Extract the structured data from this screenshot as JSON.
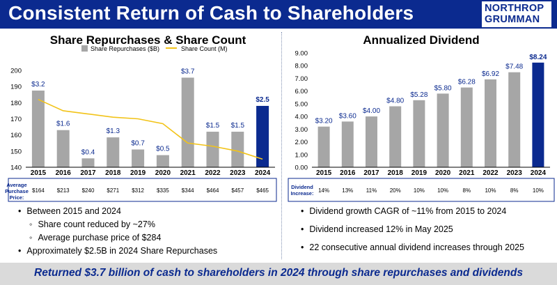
{
  "header": {
    "title": "Consistent Return of Cash to Shareholders",
    "logo_line1": "NORTHROP",
    "logo_line2": "GRUMMAN",
    "bg_color": "#0b2a8f"
  },
  "left": {
    "title": "Share Repurchases & Share Count",
    "row_label_lines": [
      "Average",
      "Purchase",
      "Price:"
    ],
    "purchase_prices": [
      "$164",
      "$213",
      "$240",
      "$271",
      "$312",
      "$335",
      "$344",
      "$464",
      "$457",
      "$465"
    ],
    "bullets": [
      {
        "text": "Between 2015 and 2024",
        "level": 1
      },
      {
        "text": "Share count reduced by ~27%",
        "level": 2
      },
      {
        "text": "Average purchase price of $284",
        "level": 2
      },
      {
        "text": "Approximately $2.5B in 2024 Share Repurchases",
        "level": 1
      }
    ]
  },
  "right": {
    "title": "Annualized Dividend",
    "row_label_lines": [
      "Dividend",
      "Increase:"
    ],
    "increases": [
      "14%",
      "13%",
      "11%",
      "20%",
      "10%",
      "10%",
      "8%",
      "10%",
      "8%",
      "10%"
    ],
    "bullets": [
      {
        "text": "Dividend growth CAGR of ~11% from 2015 to 2024",
        "level": 1
      },
      {
        "text": "Dividend increased 12% in May 2025",
        "level": 1
      },
      {
        "text": "22 consecutive annual dividend increases through 2025",
        "level": 1
      }
    ]
  },
  "footer": {
    "text": "Returned $3.7 billion of cash to shareholders in 2024 through share repurchases and dividends"
  },
  "chart_data": [
    {
      "type": "bar",
      "title": "Share Repurchases & Share Count",
      "categories": [
        "2015",
        "2016",
        "2017",
        "2018",
        "2019",
        "2020",
        "2021",
        "2022",
        "2023",
        "2024"
      ],
      "ylim": [
        140,
        200
      ],
      "yticks": [
        140,
        150,
        160,
        170,
        180,
        190,
        200
      ],
      "grid": false,
      "legend_position": "top",
      "series": [
        {
          "name": "Share Repurchases ($B)",
          "kind": "bar",
          "values": [
            3.2,
            1.6,
            0.4,
            1.3,
            0.7,
            0.5,
            3.7,
            1.5,
            1.5,
            2.5
          ],
          "bar_tops": [
            187.5,
            163,
            145.5,
            158.5,
            151,
            147.5,
            195.5,
            162,
            162,
            178
          ],
          "labels": [
            "$3.2",
            "$1.6",
            "$0.4",
            "$1.3",
            "$0.7",
            "$0.5",
            "$3.7",
            "$1.5",
            "$1.5",
            "$2.5"
          ],
          "color": "#a6a6a6",
          "highlight_color": "#0b2a8f"
        },
        {
          "name": "Share Count (M)",
          "kind": "line",
          "values": [
            182,
            175,
            173,
            171,
            170,
            167,
            155,
            153,
            150,
            145
          ],
          "color": "#f2c318"
        }
      ]
    },
    {
      "type": "bar",
      "title": "Annualized Dividend",
      "categories": [
        "2015",
        "2016",
        "2017",
        "2018",
        "2019",
        "2020",
        "2021",
        "2022",
        "2023",
        "2024"
      ],
      "ylim": [
        0,
        9
      ],
      "yticks": [
        "0.00",
        "1.00",
        "2.00",
        "3.00",
        "4.00",
        "5.00",
        "6.00",
        "7.00",
        "8.00",
        "9.00"
      ],
      "grid": false,
      "series": [
        {
          "kind": "bar",
          "values": [
            3.2,
            3.6,
            4.0,
            4.8,
            5.28,
            5.8,
            6.28,
            6.92,
            7.48,
            8.24
          ],
          "labels": [
            "$3.20",
            "$3.60",
            "$4.00",
            "$4.80",
            "$5.28",
            "$5.80",
            "$6.28",
            "$6.92",
            "$7.48",
            "$8.24"
          ],
          "color": "#a6a6a6",
          "highlight_color": "#0b2a8f"
        }
      ]
    }
  ]
}
